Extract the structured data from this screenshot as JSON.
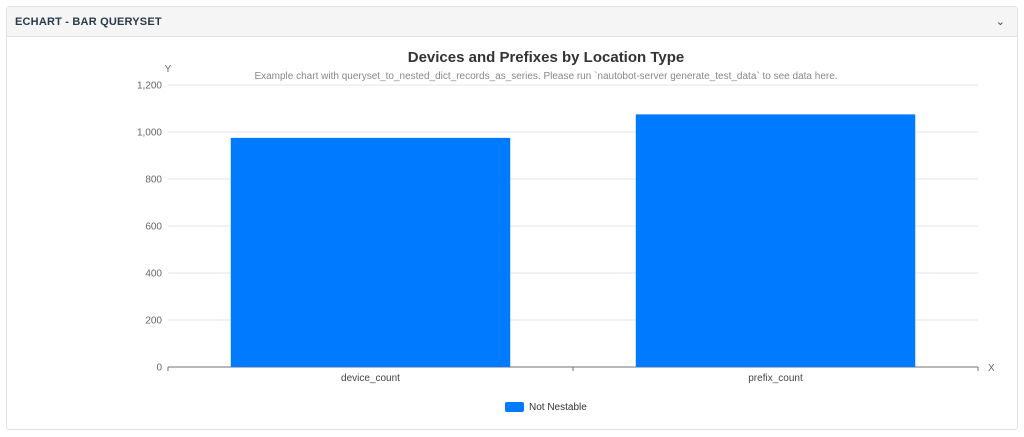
{
  "panel": {
    "title": "ECHART - BAR QUERYSET",
    "collapse_icon": "chevron-down-icon"
  },
  "chart_data": {
    "type": "bar",
    "title": "Devices and Prefixes by Location Type",
    "subtitle": "Example chart with queryset_to_nested_dict_records_as_series. Please run `nautobot-server generate_test_data` to see data here.",
    "xlabel": "X",
    "ylabel": "Y",
    "categories": [
      "device_count",
      "prefix_count"
    ],
    "series": [
      {
        "name": "Not Nestable",
        "values": [
          975,
          1075
        ],
        "color": "#007bff"
      }
    ],
    "ylim": [
      0,
      1200
    ],
    "yticks": [
      0,
      200,
      400,
      600,
      800,
      1000,
      1200
    ],
    "ytick_labels": [
      "0",
      "200",
      "400",
      "600",
      "800",
      "1,000",
      "1,200"
    ],
    "grid": true,
    "legend_position": "bottom-center"
  }
}
